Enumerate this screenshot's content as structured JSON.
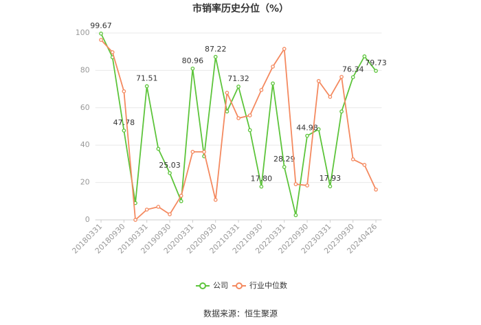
{
  "chart_data": {
    "type": "line",
    "title": "市销率历史分位（%）",
    "source": "数据来源：恒生聚源",
    "categories": [
      "20180331",
      null,
      "20180930",
      null,
      "20190331",
      null,
      "20190930",
      null,
      "20200331",
      null,
      "20200930",
      null,
      "20210331",
      null,
      "20210930",
      null,
      "20220331",
      null,
      "20220930",
      null,
      "20230331",
      null,
      "20230930",
      null,
      "20240426"
    ],
    "series": [
      {
        "name": "公司",
        "color": "#5cc43a",
        "values": [
          99.67,
          87,
          47.78,
          9,
          71.51,
          38,
          25.03,
          10,
          80.96,
          34,
          87.22,
          58,
          71.32,
          48,
          17.8,
          73,
          28.29,
          2.5,
          44.98,
          48.5,
          17.93,
          58,
          76.34,
          87.5,
          79.73
        ],
        "value_labels": [
          "99.67",
          null,
          "47.78",
          null,
          "71.51",
          null,
          "25.03",
          null,
          "80.96",
          null,
          "87.22",
          null,
          "71.32",
          null,
          "17.80",
          null,
          "28.29",
          null,
          "44.98",
          null,
          "17.93",
          null,
          "76.34",
          null,
          "79.73"
        ]
      },
      {
        "name": "行业中位数",
        "color": "#f4895f",
        "values": [
          96.3,
          89.7,
          68.8,
          0,
          5.5,
          7,
          3,
          12.9,
          36.4,
          36.4,
          10.7,
          68,
          54.4,
          55.9,
          69.5,
          82,
          91.5,
          19.1,
          18.4,
          74.3,
          65.8,
          76.5,
          32.4,
          29.4,
          16.2
        ]
      }
    ],
    "ylim": [
      0,
      100
    ],
    "yticks": [
      0,
      20,
      40,
      60,
      80,
      100
    ],
    "grid": true
  }
}
